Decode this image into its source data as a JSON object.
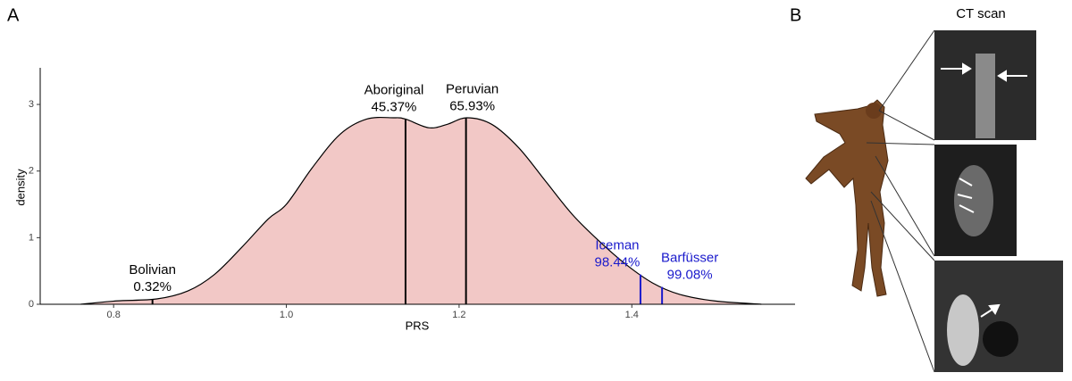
{
  "figure": {
    "panel_a": "A",
    "panel_b": "B",
    "ct_label": "CT scan"
  },
  "chart_data": {
    "type": "density",
    "x_label": "PRS",
    "y_label": "density",
    "xlim": [
      0.715,
      1.589
    ],
    "ylim": [
      0,
      3.55
    ],
    "xticks": [
      0.8,
      {
        "value": 1,
        "label": "1.0"
      },
      1.2,
      1.4
    ],
    "yticks": [
      0,
      1,
      2,
      3
    ],
    "color": "#f2c8c6",
    "x": [
      0.762,
      0.803,
      0.85,
      0.886,
      0.917,
      0.948,
      0.979,
      1.0,
      1.03,
      1.062,
      1.093,
      1.124,
      1.138,
      1.165,
      1.186,
      1.209,
      1.238,
      1.269,
      1.3,
      1.331,
      1.362,
      1.393,
      1.424,
      1.455,
      1.496,
      1.55
    ],
    "values": [
      0,
      0.05,
      0.08,
      0.2,
      0.45,
      0.85,
      1.28,
      1.5,
      2.05,
      2.55,
      2.78,
      2.8,
      2.78,
      2.65,
      2.7,
      2.8,
      2.7,
      2.35,
      1.85,
      1.35,
      0.95,
      0.6,
      0.32,
      0.15,
      0.05,
      0
    ],
    "markers": [
      {
        "name": "Bolivian",
        "label": "0.32%",
        "x": 0.845,
        "color": "#000000"
      },
      {
        "name": "Aboriginal",
        "label": "45.37%",
        "x": 1.138,
        "color": "#000000"
      },
      {
        "name": "Peruvian",
        "label": "65.93%",
        "x": 1.208,
        "color": "#000000"
      },
      {
        "name": "Iceman",
        "label": "98.44%",
        "x": 1.41,
        "color": "#1a1acc"
      },
      {
        "name": "Barfüsser",
        "label": "99.08%",
        "x": 1.435,
        "color": "#1a1acc"
      }
    ]
  }
}
